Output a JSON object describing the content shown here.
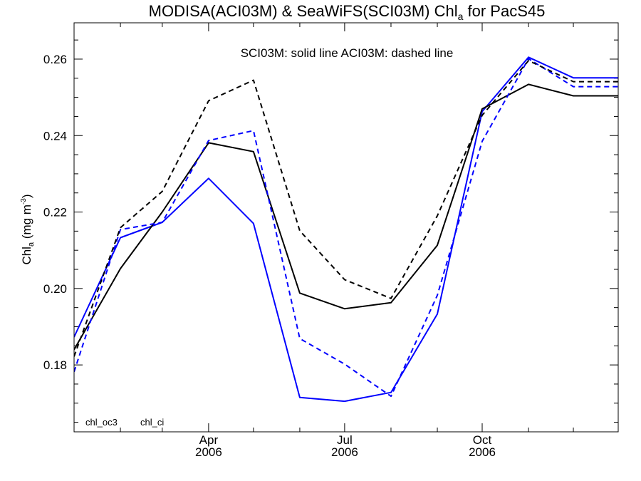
{
  "chart_data": {
    "type": "line",
    "title": {
      "prefix": "MODISA(ACI03M) & SeaWiFS(SCI03M)  Chl",
      "sub": "a",
      "suffix": " for PacS45"
    },
    "ylabel": {
      "main": "Chl",
      "sub": "a",
      "unit_open": " (mg m",
      "unit_sup": "-3",
      "unit_close": ")"
    },
    "annotation": "SCI03M: solid line   ACI03M: dashed line",
    "legend": [
      {
        "label": "chl_oc3",
        "color": "#0000ff"
      },
      {
        "label": "chl_ci",
        "color": "#000000"
      }
    ],
    "ylim": [
      0.1625,
      0.2695
    ],
    "yticks": [
      0.18,
      0.2,
      0.22,
      0.24,
      0.26
    ],
    "ytick_labels": [
      "0.18",
      "0.20",
      "0.22",
      "0.24",
      "0.26"
    ],
    "xlim": [
      "2006-01-01",
      "2006-12-31"
    ],
    "x_tick_labels": [
      {
        "month": "Apr",
        "year": "2006",
        "date": "2006-04-01"
      },
      {
        "month": "Jul",
        "year": "2006",
        "date": "2006-07-01"
      },
      {
        "month": "Oct",
        "year": "2006",
        "date": "2006-10-01"
      }
    ],
    "x": [
      "2006-01-01",
      "2006-02-01",
      "2006-03-01",
      "2006-04-01",
      "2006-05-01",
      "2006-06-01",
      "2006-07-01",
      "2006-08-01",
      "2006-09-01",
      "2006-10-01",
      "2006-11-01",
      "2006-12-01",
      "2006-12-31"
    ],
    "series": [
      {
        "name": "chl_oc3",
        "instrument": "SCI03M",
        "style": "solid",
        "color": "#0000ff",
        "values": [
          0.1873,
          0.2133,
          0.2173,
          0.2288,
          0.217,
          0.1715,
          0.1705,
          0.1728,
          0.1933,
          0.2463,
          0.2605,
          0.2551,
          0.2551
        ]
      },
      {
        "name": "chl_ci",
        "instrument": "SCI03M",
        "style": "solid",
        "color": "#000000",
        "values": [
          0.184,
          0.2052,
          0.22,
          0.2381,
          0.2358,
          0.1988,
          0.1947,
          0.1963,
          0.2113,
          0.247,
          0.2534,
          0.2504,
          0.2504
        ]
      },
      {
        "name": "chl_oc3",
        "instrument": "ACI03M",
        "style": "dashed",
        "color": "#0000ff",
        "values": [
          0.1782,
          0.2154,
          0.2173,
          0.2387,
          0.2413,
          0.1869,
          0.1802,
          0.1718,
          0.1982,
          0.2385,
          0.2601,
          0.2528,
          0.2528
        ]
      },
      {
        "name": "chl_ci",
        "instrument": "ACI03M",
        "style": "dashed",
        "color": "#000000",
        "values": [
          0.1822,
          0.2159,
          0.2254,
          0.2491,
          0.2545,
          0.2151,
          0.2023,
          0.1974,
          0.219,
          0.2453,
          0.2596,
          0.2541,
          0.2541
        ]
      }
    ]
  }
}
